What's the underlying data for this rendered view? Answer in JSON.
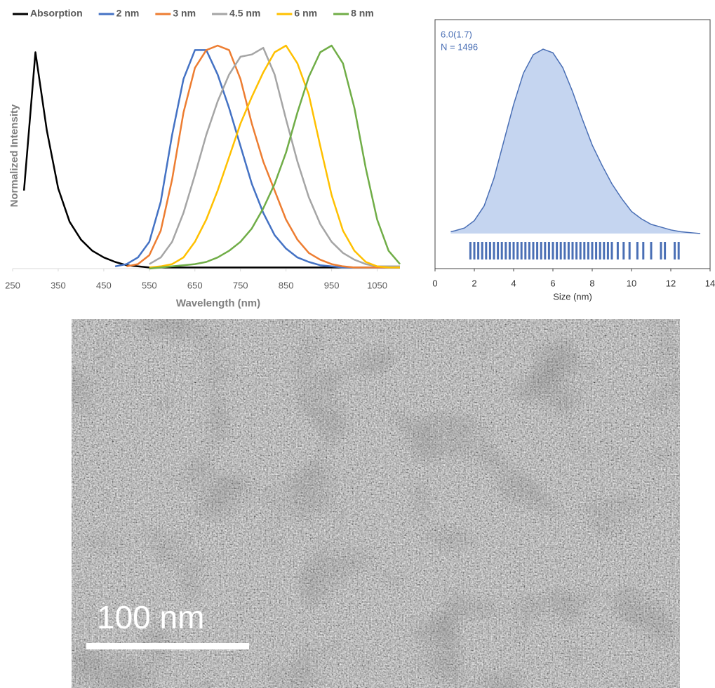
{
  "chart_data": [
    {
      "type": "line",
      "xlabel": "Wavelength (nm)",
      "ylabel": "Normalized Intensity",
      "x": [
        250,
        275,
        300,
        325,
        350,
        375,
        400,
        425,
        450,
        475,
        500,
        525,
        550,
        575,
        600,
        625,
        650,
        675,
        700,
        725,
        750,
        775,
        800,
        825,
        850,
        875,
        900,
        925,
        950,
        975,
        1000,
        1025,
        1050,
        1075,
        1100
      ],
      "xlim": [
        250,
        1100
      ],
      "xticks": [
        250,
        350,
        450,
        550,
        650,
        750,
        850,
        950,
        1050
      ],
      "ylim": [
        0,
        1
      ],
      "legend": "top",
      "series": [
        {
          "name": "Absorption",
          "color": "#000000",
          "values": [
            null,
            0.35,
            0.97,
            0.62,
            0.36,
            0.21,
            0.13,
            0.08,
            0.05,
            0.03,
            0.015,
            0.01,
            0.005,
            0.005,
            0.005,
            0.005,
            0.005,
            0.005,
            0.005,
            0.005,
            0.005,
            0.005,
            0.005,
            0.005,
            0.005,
            0.005,
            0.005,
            0.005,
            0.005,
            0.005,
            0.005,
            0.005,
            0.005,
            0.005,
            0.005
          ]
        },
        {
          "name": "2 nm",
          "color": "#4472c4",
          "values": [
            null,
            null,
            null,
            null,
            null,
            null,
            null,
            null,
            null,
            0.01,
            0.02,
            0.05,
            0.12,
            0.3,
            0.6,
            0.85,
            0.98,
            0.98,
            0.87,
            0.72,
            0.55,
            0.38,
            0.25,
            0.15,
            0.09,
            0.05,
            0.03,
            0.015,
            0.01,
            0.005,
            0.005,
            0.005,
            0.005,
            0.005,
            0.005
          ]
        },
        {
          "name": "3 nm",
          "color": "#ed7d31",
          "values": [
            null,
            null,
            null,
            null,
            null,
            null,
            null,
            null,
            null,
            null,
            0.01,
            0.02,
            0.06,
            0.17,
            0.4,
            0.7,
            0.9,
            0.98,
            1.0,
            0.98,
            0.85,
            0.65,
            0.48,
            0.35,
            0.22,
            0.13,
            0.07,
            0.04,
            0.02,
            0.01,
            0.005,
            0.005,
            0.005,
            0.005,
            0.005
          ]
        },
        {
          "name": "4.5 nm",
          "color": "#a5a5a5",
          "values": [
            null,
            null,
            null,
            null,
            null,
            null,
            null,
            null,
            null,
            null,
            null,
            null,
            0.02,
            0.05,
            0.12,
            0.25,
            0.42,
            0.6,
            0.75,
            0.87,
            0.95,
            0.96,
            0.99,
            0.87,
            0.67,
            0.48,
            0.32,
            0.2,
            0.12,
            0.07,
            0.04,
            0.02,
            0.01,
            0.01,
            0.01
          ]
        },
        {
          "name": "6 nm",
          "color": "#ffc000",
          "values": [
            null,
            null,
            null,
            null,
            null,
            null,
            null,
            null,
            null,
            null,
            null,
            null,
            0.005,
            0.01,
            0.02,
            0.05,
            0.12,
            0.22,
            0.35,
            0.5,
            0.65,
            0.77,
            0.88,
            0.97,
            1.0,
            0.92,
            0.78,
            0.55,
            0.33,
            0.17,
            0.08,
            0.03,
            0.01,
            0.005,
            0.005
          ]
        },
        {
          "name": "8 nm",
          "color": "#70ad47",
          "values": [
            null,
            null,
            null,
            null,
            null,
            null,
            null,
            null,
            null,
            null,
            null,
            null,
            0.0,
            0.005,
            0.01,
            0.015,
            0.02,
            0.03,
            0.05,
            0.08,
            0.12,
            0.18,
            0.27,
            0.38,
            0.52,
            0.7,
            0.86,
            0.97,
            1.0,
            0.92,
            0.72,
            0.45,
            0.22,
            0.08,
            0.02
          ]
        }
      ]
    },
    {
      "type": "density",
      "xlabel": "Size (nm)",
      "annotations": [
        "6.0(1.7)",
        "N = 1496"
      ],
      "x": [
        0.8,
        1,
        1.5,
        2,
        2.5,
        3,
        3.5,
        4,
        4.5,
        5,
        5.5,
        6,
        6.5,
        7,
        7.5,
        8,
        8.5,
        9,
        9.5,
        10,
        10.5,
        11,
        11.5,
        12,
        12.5,
        13,
        13.5
      ],
      "values": [
        0.01,
        0.015,
        0.03,
        0.07,
        0.15,
        0.3,
        0.5,
        0.7,
        0.87,
        0.97,
        1.0,
        0.98,
        0.9,
        0.77,
        0.62,
        0.48,
        0.37,
        0.27,
        0.19,
        0.12,
        0.08,
        0.05,
        0.035,
        0.02,
        0.01,
        0.005,
        0.0
      ],
      "rug": [
        1.8,
        2.0,
        2.2,
        2.4,
        2.6,
        2.8,
        3.0,
        3.2,
        3.4,
        3.6,
        3.8,
        4.0,
        4.2,
        4.4,
        4.6,
        4.8,
        5.0,
        5.2,
        5.4,
        5.6,
        5.8,
        6.0,
        6.2,
        6.4,
        6.6,
        6.8,
        7.0,
        7.2,
        7.4,
        7.6,
        7.8,
        8.0,
        8.2,
        8.4,
        8.6,
        8.8,
        9.0,
        9.3,
        9.6,
        9.9,
        10.3,
        10.6,
        11.0,
        11.5,
        11.7,
        12.2,
        12.4
      ],
      "color": "#4a6fb5",
      "fill": "#c5d5f0",
      "xlim": [
        0,
        14
      ],
      "xticks": [
        0,
        2,
        4,
        6,
        8,
        10,
        12,
        14
      ],
      "ylim": [
        -0.19,
        1.16
      ]
    }
  ],
  "micrograph": {
    "scale_bar_label": "100 nm"
  }
}
